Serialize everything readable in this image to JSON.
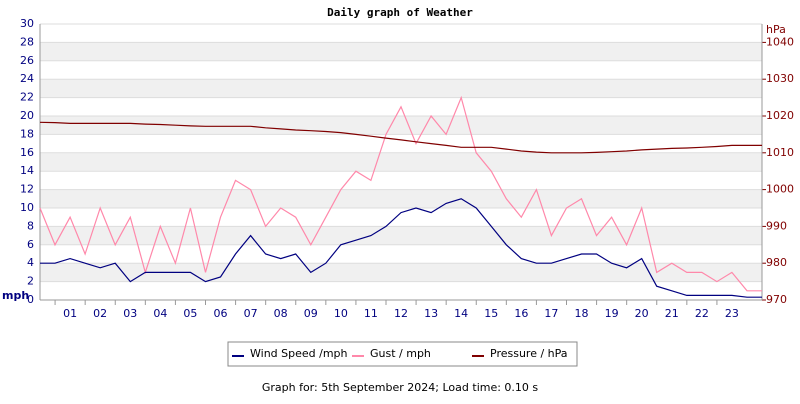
{
  "chart_data": {
    "type": "line",
    "title": "Daily graph of Weather",
    "ylabel": "mph",
    "y2label": "hPa",
    "footer": "Graph for: 5th September 2024; Load time: 0.10 s",
    "x": [
      0,
      0.5,
      1,
      1.5,
      2,
      2.5,
      3,
      3.5,
      4,
      4.5,
      5,
      5.5,
      6,
      6.5,
      7,
      7.5,
      8,
      8.5,
      9,
      9.5,
      10,
      10.5,
      11,
      11.5,
      12,
      12.5,
      13,
      13.5,
      14,
      14.5,
      15,
      15.5,
      16,
      16.5,
      17,
      17.5,
      18,
      18.5,
      19,
      19.5,
      20,
      20.5,
      21,
      21.5,
      22,
      22.5,
      23,
      23.5,
      24
    ],
    "xlim": [
      0,
      24
    ],
    "xticks": [
      {
        "value": 1,
        "label": "01"
      },
      {
        "value": 2,
        "label": "02"
      },
      {
        "value": 3,
        "label": "03"
      },
      {
        "value": 4,
        "label": "04"
      },
      {
        "value": 5,
        "label": "05"
      },
      {
        "value": 6,
        "label": "06"
      },
      {
        "value": 7,
        "label": "07"
      },
      {
        "value": 8,
        "label": "08"
      },
      {
        "value": 9,
        "label": "09"
      },
      10,
      11,
      12,
      13,
      14,
      15,
      16,
      17,
      18,
      19,
      20,
      21,
      22,
      23
    ],
    "ylim": [
      0,
      30
    ],
    "yticks": [
      0,
      2,
      4,
      6,
      8,
      10,
      12,
      14,
      16,
      18,
      20,
      22,
      24,
      26,
      28,
      30
    ],
    "y2lim": [
      970,
      1045
    ],
    "y2ticks": [
      970,
      980,
      990,
      1000,
      1010,
      1020,
      1030,
      1040
    ],
    "grid": true,
    "series": [
      {
        "name": "Gust / mph",
        "color": "#ff88aa",
        "values": [
          10,
          6,
          9,
          5,
          10,
          6,
          9,
          3,
          8,
          4,
          10,
          3,
          9,
          13,
          12,
          8,
          10,
          9,
          6,
          9,
          12,
          14,
          13,
          18,
          21,
          17,
          20,
          18,
          22,
          16,
          14,
          11,
          9,
          12,
          7,
          10,
          11,
          7,
          9,
          6,
          10,
          3,
          4,
          3,
          3,
          2,
          3,
          1,
          1
        ]
      },
      {
        "name": "Wind Speed /mph",
        "color": "#000080",
        "values": [
          4,
          4,
          4.5,
          4,
          3.5,
          4,
          2,
          3,
          3,
          3,
          3,
          2,
          2.5,
          5,
          7,
          5,
          4.5,
          5,
          3,
          4,
          6,
          6.5,
          7,
          8,
          9.5,
          10,
          9.5,
          10.5,
          11,
          10,
          8,
          6,
          4.5,
          4,
          4,
          4.5,
          5,
          5,
          4,
          3.5,
          4.5,
          1.5,
          1,
          0.5,
          0.5,
          0.5,
          0.5,
          0.3,
          0.3
        ]
      },
      {
        "name": "Pressure / hPa",
        "color": "#800000",
        "axis": "y2",
        "values": [
          1018.3,
          1018.2,
          1018,
          1018,
          1018,
          1018,
          1018,
          1017.8,
          1017.7,
          1017.5,
          1017.3,
          1017.2,
          1017.2,
          1017.2,
          1017.2,
          1016.8,
          1016.5,
          1016.2,
          1016,
          1015.8,
          1015.5,
          1015,
          1014.5,
          1014,
          1013.5,
          1013,
          1012.5,
          1012,
          1011.5,
          1011.5,
          1011.5,
          1011,
          1010.5,
          1010.2,
          1010,
          1010,
          1010,
          1010.1,
          1010.3,
          1010.5,
          1010.8,
          1011,
          1011.2,
          1011.3,
          1011.5,
          1011.7,
          1012,
          1012,
          1012
        ]
      }
    ],
    "legend_order": [
      1,
      0,
      2
    ]
  }
}
